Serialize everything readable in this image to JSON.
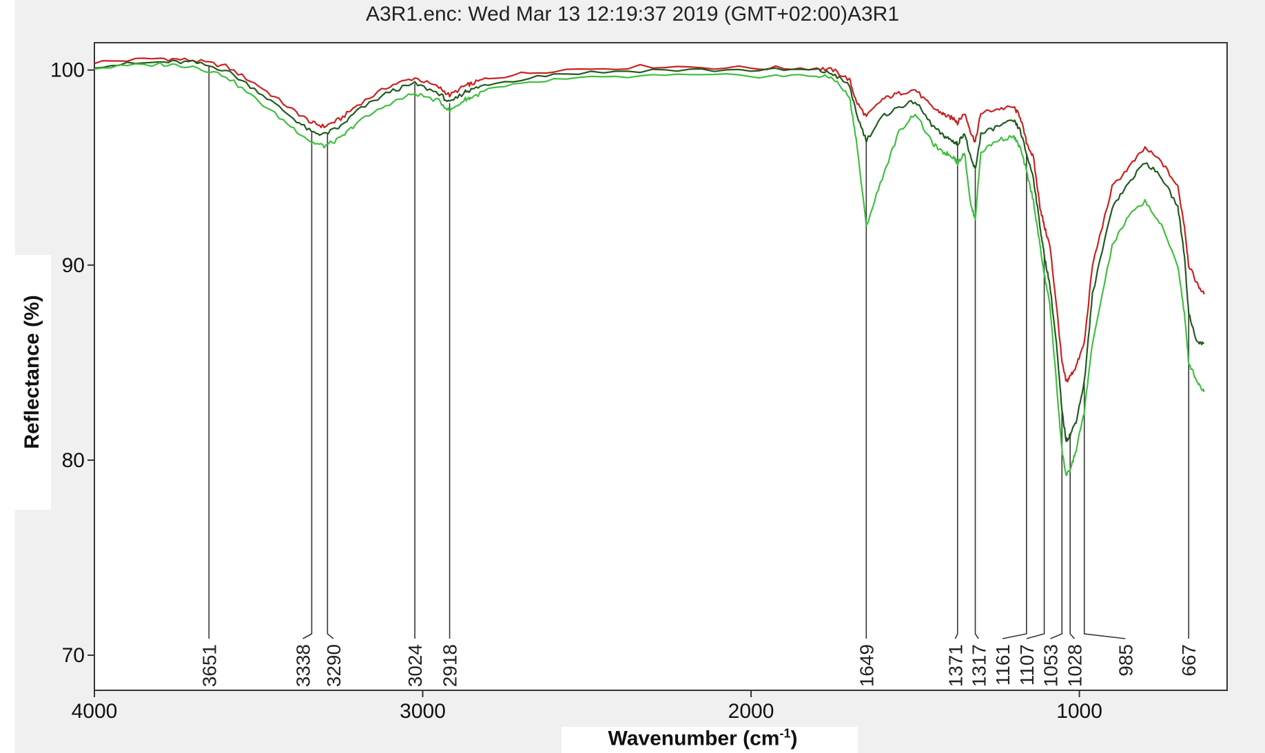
{
  "chart_data": {
    "type": "line",
    "title": "A3R1.enc: Wed Mar 13 12:19:37 2019 (GMT+02:00)A3R1",
    "xlabel_main": "Wavenumber (cm",
    "xlabel_sup": "-1",
    "xlabel_end": ")",
    "ylabel": "Reflectance (%)",
    "xlim": [
      4000,
      550
    ],
    "ylim": [
      68.2,
      101.4
    ],
    "x_reversed": true,
    "xticks": [
      4000,
      3000,
      2000,
      1000
    ],
    "xtick_labels": [
      "4000",
      "3000",
      "2000",
      "1000"
    ],
    "yticks": [
      70,
      80,
      90,
      100
    ],
    "ytick_labels": [
      "70",
      "80",
      "90",
      "100"
    ],
    "grid": false,
    "legend": "none",
    "series": [
      {
        "color": "#cc1f1f",
        "x": [
          4000,
          3800,
          3700,
          3600,
          3500,
          3400,
          3338,
          3300,
          3250,
          3200,
          3100,
          3024,
          2950,
          2918,
          2870,
          2850,
          2800,
          2600,
          2300,
          2000,
          1800,
          1750,
          1700,
          1680,
          1649,
          1600,
          1550,
          1500,
          1450,
          1420,
          1400,
          1380,
          1371,
          1350,
          1330,
          1317,
          1300,
          1250,
          1200,
          1180,
          1161,
          1140,
          1120,
          1107,
          1090,
          1070,
          1053,
          1040,
          1028,
          1010,
          985,
          960,
          900,
          850,
          800,
          750,
          700,
          680,
          667,
          640,
          620
        ],
        "values": [
          100.4,
          100.6,
          100.5,
          100.2,
          99.2,
          98.0,
          97.3,
          97.1,
          97.5,
          98.2,
          99.2,
          99.6,
          99.1,
          98.7,
          99.2,
          99.3,
          99.6,
          100.0,
          100.2,
          100.1,
          100.1,
          100.0,
          99.5,
          98.4,
          97.6,
          98.5,
          98.8,
          99.0,
          98.1,
          97.8,
          97.6,
          97.5,
          97.3,
          97.8,
          96.8,
          96.3,
          97.8,
          98.0,
          98.1,
          97.6,
          96.3,
          95.5,
          93.0,
          92.0,
          91.0,
          88.0,
          85.0,
          84.0,
          84.3,
          84.8,
          86.0,
          90.0,
          94.0,
          95.0,
          96.0,
          95.3,
          94.0,
          92.0,
          90.0,
          89.0,
          88.5
        ]
      },
      {
        "color": "#1f5a1f",
        "x": [
          4000,
          3800,
          3700,
          3600,
          3500,
          3400,
          3338,
          3300,
          3250,
          3200,
          3100,
          3024,
          2950,
          2918,
          2870,
          2850,
          2800,
          2600,
          2300,
          2000,
          1800,
          1750,
          1700,
          1680,
          1649,
          1600,
          1550,
          1500,
          1450,
          1420,
          1400,
          1380,
          1371,
          1350,
          1330,
          1317,
          1300,
          1250,
          1200,
          1180,
          1161,
          1140,
          1120,
          1107,
          1090,
          1070,
          1053,
          1040,
          1028,
          1010,
          985,
          960,
          900,
          850,
          800,
          750,
          700,
          680,
          667,
          640,
          620
        ],
        "values": [
          100.2,
          100.4,
          100.4,
          100.0,
          98.9,
          97.6,
          96.8,
          96.7,
          97.1,
          97.9,
          98.9,
          99.3,
          98.8,
          98.3,
          98.9,
          99.0,
          99.3,
          99.8,
          100.0,
          100.0,
          100.0,
          99.8,
          99.2,
          97.8,
          96.4,
          97.6,
          98.1,
          98.4,
          97.2,
          96.7,
          96.5,
          96.3,
          96.2,
          96.8,
          95.4,
          94.9,
          96.7,
          97.1,
          97.4,
          96.9,
          95.7,
          94.5,
          92.0,
          90.5,
          89.0,
          86.0,
          82.5,
          81.0,
          81.3,
          82.0,
          84.0,
          88.5,
          93.0,
          94.2,
          95.3,
          94.5,
          93.0,
          90.5,
          87.5,
          86.0,
          86.0
        ]
      },
      {
        "color": "#3fbf3f",
        "x": [
          4000,
          3800,
          3700,
          3600,
          3500,
          3400,
          3338,
          3300,
          3250,
          3200,
          3100,
          3024,
          2950,
          2918,
          2870,
          2850,
          2800,
          2600,
          2300,
          2000,
          1800,
          1750,
          1700,
          1680,
          1649,
          1600,
          1550,
          1500,
          1450,
          1420,
          1400,
          1380,
          1371,
          1350,
          1330,
          1317,
          1300,
          1250,
          1200,
          1180,
          1161,
          1140,
          1120,
          1107,
          1090,
          1070,
          1053,
          1040,
          1028,
          1010,
          985,
          960,
          900,
          850,
          800,
          750,
          700,
          680,
          667,
          640,
          620
        ],
        "values": [
          100.1,
          100.3,
          100.2,
          99.7,
          98.4,
          97.1,
          96.3,
          96.1,
          96.5,
          97.3,
          98.3,
          98.8,
          98.4,
          97.9,
          98.5,
          98.6,
          99.0,
          99.5,
          99.7,
          99.7,
          99.7,
          99.6,
          98.6,
          96.5,
          92.0,
          94.5,
          96.8,
          97.8,
          96.3,
          95.8,
          95.7,
          95.5,
          95.2,
          95.8,
          93.0,
          92.4,
          95.8,
          96.4,
          96.6,
          96.0,
          94.8,
          93.3,
          91.0,
          89.5,
          88.0,
          84.0,
          80.5,
          79.2,
          79.5,
          80.5,
          82.5,
          86.0,
          91.0,
          92.5,
          93.3,
          92.0,
          90.0,
          87.5,
          85.0,
          84.0,
          83.5
        ]
      }
    ],
    "annotations": [
      {
        "label": "3651",
        "x": 3651,
        "label_x": 3651
      },
      {
        "label": "3338",
        "x": 3338,
        "label_x": 3365
      },
      {
        "label": "3290",
        "x": 3290,
        "label_x": 3272
      },
      {
        "label": "3024",
        "x": 3024,
        "label_x": 3024
      },
      {
        "label": "2918",
        "x": 2918,
        "label_x": 2918
      },
      {
        "label": "1649",
        "x": 1649,
        "label_x": 1649
      },
      {
        "label": "1371",
        "x": 1371,
        "label_x": 1378
      },
      {
        "label": "1317",
        "x": 1317,
        "label_x": 1307
      },
      {
        "label": "1161",
        "x": 1161,
        "label_x": 1234
      },
      {
        "label": "1107",
        "x": 1107,
        "label_x": 1161
      },
      {
        "label": "1053",
        "x": 1053,
        "label_x": 1088
      },
      {
        "label": "1028",
        "x": 1028,
        "label_x": 1015
      },
      {
        "label": "985",
        "x": 985,
        "label_x": 860
      },
      {
        "label": "667",
        "x": 667,
        "label_x": 667
      }
    ]
  }
}
